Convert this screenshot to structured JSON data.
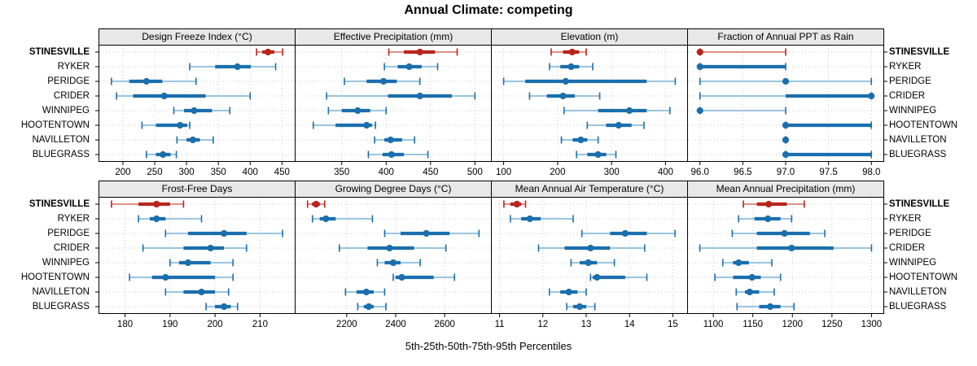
{
  "title": "Annual Climate: competing",
  "xlabel": "5th-25th-50th-75th-95th Percentiles",
  "categories": [
    "STINESVILLE",
    "RYKER",
    "PERIDGE",
    "CRIDER",
    "WINNIPEG",
    "HOOTENTOWN",
    "NAVILLETON",
    "BLUEGRASS"
  ],
  "bold_category": "STINESVILLE",
  "colors": {
    "highlight": "#b8251c",
    "highlight_light": "#d97f77",
    "normal": "#1b6fad",
    "normal_light": "#8cbbda",
    "strip_bg": "#e8e8e8",
    "grid": "#c9c9c9",
    "border": "#000000",
    "background": "#ffffff"
  },
  "chart_data": {
    "type": "dotplot-percentiles",
    "percentiles": [
      "5th",
      "25th",
      "50th",
      "75th",
      "95th"
    ],
    "rows": 2,
    "cols": 4,
    "panels": [
      {
        "title": "Design Freeze Index (°C)",
        "row": 0,
        "col": 0,
        "xlim": [
          163,
          470
        ],
        "ticks": [
          200,
          250,
          300,
          350,
          400,
          450
        ],
        "tick_labels": [
          "200",
          "250",
          "300",
          "350",
          "400",
          "450"
        ],
        "series": [
          {
            "name": "STINESVILLE",
            "values": [
              410,
              419,
              428,
              438,
              451
            ]
          },
          {
            "name": "RYKER",
            "values": [
              305,
              345,
              380,
              401,
              440
            ]
          },
          {
            "name": "PERIDGE",
            "values": [
              182,
              210,
              237,
              262,
              315
            ]
          },
          {
            "name": "CRIDER",
            "values": [
              190,
              216,
              265,
              330,
              400
            ]
          },
          {
            "name": "WINNIPEG",
            "values": [
              280,
              296,
              312,
              340,
              368
            ]
          },
          {
            "name": "HOOTENTOWN",
            "values": [
              230,
              252,
              290,
              301,
              305
            ]
          },
          {
            "name": "NAVILLETON",
            "values": [
              285,
              300,
              310,
              321,
              342
            ]
          },
          {
            "name": "BLUEGRASS",
            "values": [
              237,
              252,
              263,
              275,
              284
            ]
          }
        ]
      },
      {
        "title": "Effective Precipitation (mm)",
        "row": 0,
        "col": 1,
        "xlim": [
          298,
          518
        ],
        "ticks": [
          350,
          400,
          450,
          500
        ],
        "tick_labels": [
          "350",
          "400",
          "450",
          "500"
        ],
        "series": [
          {
            "name": "STINESVILLE",
            "values": [
              403,
              420,
              438,
              455,
              480
            ]
          },
          {
            "name": "RYKER",
            "values": [
              398,
              413,
              426,
              440,
              458
            ]
          },
          {
            "name": "PERIDGE",
            "values": [
              353,
              378,
              397,
              412,
              438
            ]
          },
          {
            "name": "CRIDER",
            "values": [
              333,
              402,
              438,
              474,
              500
            ]
          },
          {
            "name": "WINNIPEG",
            "values": [
              335,
              350,
              368,
              382,
              400
            ]
          },
          {
            "name": "HOOTENTOWN",
            "values": [
              318,
              343,
              378,
              384,
              388
            ]
          },
          {
            "name": "NAVILLETON",
            "values": [
              387,
              398,
              405,
              418,
              432
            ]
          },
          {
            "name": "BLUEGRASS",
            "values": [
              380,
              396,
              406,
              420,
              447
            ]
          }
        ]
      },
      {
        "title": "Elevation (m)",
        "row": 0,
        "col": 2,
        "xlim": [
          78,
          440
        ],
        "ticks": [
          100,
          200,
          300,
          400
        ],
        "tick_labels": [
          "100",
          "200",
          "300",
          "400"
        ],
        "series": [
          {
            "name": "STINESVILLE",
            "values": [
              188,
              210,
              227,
              240,
              253
            ]
          },
          {
            "name": "RYKER",
            "values": [
              185,
              205,
              225,
              240,
              265
            ]
          },
          {
            "name": "PERIDGE",
            "values": [
              100,
              140,
              215,
              365,
              418
            ]
          },
          {
            "name": "CRIDER",
            "values": [
              148,
              180,
              210,
              232,
              278
            ]
          },
          {
            "name": "WINNIPEG",
            "values": [
              212,
              275,
              333,
              365,
              408
            ]
          },
          {
            "name": "HOOTENTOWN",
            "values": [
              255,
              290,
              313,
              337,
              360
            ]
          },
          {
            "name": "NAVILLETON",
            "values": [
              207,
              228,
              243,
              255,
              275
            ]
          },
          {
            "name": "BLUEGRASS",
            "values": [
              235,
              255,
              275,
              290,
              308
            ]
          }
        ]
      },
      {
        "title": "Fraction of Annual PPT as Rain",
        "row": 0,
        "col": 3,
        "xlim": [
          95.86,
          98.14
        ],
        "ticks": [
          96.0,
          96.5,
          97.0,
          97.5,
          98.0
        ],
        "tick_labels": [
          "96.0",
          "96.5",
          "97.0",
          "97.5",
          "98.0"
        ],
        "series": [
          {
            "name": "STINESVILLE",
            "values": [
              96,
              96,
              96,
              96,
              97
            ]
          },
          {
            "name": "RYKER",
            "values": [
              96,
              96,
              96,
              97,
              97
            ]
          },
          {
            "name": "PERIDGE",
            "values": [
              96,
              97,
              97,
              97,
              98
            ]
          },
          {
            "name": "CRIDER",
            "values": [
              96,
              97,
              98,
              98,
              98
            ]
          },
          {
            "name": "WINNIPEG",
            "values": [
              96,
              96,
              96,
              96,
              97
            ]
          },
          {
            "name": "HOOTENTOWN",
            "values": [
              97,
              97,
              97,
              98,
              98
            ]
          },
          {
            "name": "NAVILLETON",
            "values": [
              97,
              97,
              97,
              97,
              97
            ]
          },
          {
            "name": "BLUEGRASS",
            "values": [
              97,
              97,
              97,
              98,
              98
            ]
          }
        ]
      },
      {
        "title": "Frost-Free Days",
        "row": 1,
        "col": 0,
        "xlim": [
          174.3,
          217.7
        ],
        "ticks": [
          180,
          190,
          200,
          210
        ],
        "tick_labels": [
          "180",
          "190",
          "200",
          "210"
        ],
        "series": [
          {
            "name": "STINESVILLE",
            "values": [
              177,
              183,
              187,
              190,
              193
            ]
          },
          {
            "name": "RYKER",
            "values": [
              183,
              185.5,
              187,
              189,
              197
            ]
          },
          {
            "name": "PERIDGE",
            "values": [
              189,
              194,
              202,
              207,
              215
            ]
          },
          {
            "name": "CRIDER",
            "values": [
              184,
              193,
              199,
              202,
              207
            ]
          },
          {
            "name": "WINNIPEG",
            "values": [
              190,
              192,
              194,
              199,
              204
            ]
          },
          {
            "name": "HOOTENTOWN",
            "values": [
              181,
              186,
              189,
              200,
              204
            ]
          },
          {
            "name": "NAVILLETON",
            "values": [
              189,
              193,
              197,
              200,
              203
            ]
          },
          {
            "name": "BLUEGRASS",
            "values": [
              198,
              200,
              202,
              203.5,
              205
            ]
          }
        ]
      },
      {
        "title": "Growing Degree Days (°C)",
        "row": 1,
        "col": 1,
        "xlim": [
          1991,
          2789
        ],
        "ticks": [
          2200,
          2400,
          2600
        ],
        "tick_labels": [
          "2200",
          "2400",
          "2600"
        ],
        "series": [
          {
            "name": "STINESVILLE",
            "values": [
              2040,
              2058,
              2075,
              2090,
              2110
            ]
          },
          {
            "name": "RYKER",
            "values": [
              2060,
              2090,
              2115,
              2155,
              2305
            ]
          },
          {
            "name": "PERIDGE",
            "values": [
              2355,
              2420,
              2525,
              2620,
              2740
            ]
          },
          {
            "name": "CRIDER",
            "values": [
              2170,
              2285,
              2375,
              2475,
              2605
            ]
          },
          {
            "name": "WINNIPEG",
            "values": [
              2325,
              2355,
              2390,
              2420,
              2500
            ]
          },
          {
            "name": "HOOTENTOWN",
            "values": [
              2390,
              2400,
              2425,
              2555,
              2640
            ]
          },
          {
            "name": "NAVILLETON",
            "values": [
              2195,
              2240,
              2280,
              2310,
              2355
            ]
          },
          {
            "name": "BLUEGRASS",
            "values": [
              2245,
              2270,
              2290,
              2310,
              2360
            ]
          }
        ]
      },
      {
        "title": "Mean Annual Air Temperature (°C)",
        "row": 1,
        "col": 2,
        "xlim": [
          10.82,
          15.33
        ],
        "ticks": [
          11,
          12,
          13,
          14,
          15
        ],
        "tick_labels": [
          "11",
          "12",
          "13",
          "14",
          "15"
        ],
        "series": [
          {
            "name": "STINESVILLE",
            "values": [
              11.1,
              11.25,
              11.4,
              11.5,
              11.6
            ]
          },
          {
            "name": "RYKER",
            "values": [
              11.25,
              11.5,
              11.7,
              11.95,
              12.7
            ]
          },
          {
            "name": "PERIDGE",
            "values": [
              12.9,
              13.55,
              13.9,
              14.4,
              15.05
            ]
          },
          {
            "name": "CRIDER",
            "values": [
              11.9,
              12.5,
              13.1,
              13.55,
              14.35
            ]
          },
          {
            "name": "WINNIPEG",
            "values": [
              12.65,
              12.85,
              13.05,
              13.25,
              13.65
            ]
          },
          {
            "name": "HOOTENTOWN",
            "values": [
              13.1,
              13.15,
              13.25,
              13.9,
              14.4
            ]
          },
          {
            "name": "NAVILLETON",
            "values": [
              12.15,
              12.4,
              12.6,
              12.8,
              13.0
            ]
          },
          {
            "name": "BLUEGRASS",
            "values": [
              12.55,
              12.7,
              12.85,
              13.0,
              13.2
            ]
          }
        ]
      },
      {
        "title": "Mean Annual Precipitation (mm)",
        "row": 1,
        "col": 3,
        "xlim": [
          1068,
          1315
        ],
        "ticks": [
          1100,
          1150,
          1200,
          1250,
          1300
        ],
        "tick_labels": [
          "1100",
          "1150",
          "1200",
          "1250",
          "1300"
        ],
        "series": [
          {
            "name": "STINESVILLE",
            "values": [
              1138,
              1155,
              1170,
              1193,
              1215
            ]
          },
          {
            "name": "RYKER",
            "values": [
              1132,
              1152,
              1169,
              1185,
              1199
            ]
          },
          {
            "name": "PERIDGE",
            "values": [
              1124,
              1155,
              1190,
              1222,
              1241
            ]
          },
          {
            "name": "CRIDER",
            "values": [
              1083,
              1155,
              1199,
              1252,
              1300
            ]
          },
          {
            "name": "WINNIPEG",
            "values": [
              1112,
              1125,
              1132,
              1145,
              1174
            ]
          },
          {
            "name": "HOOTENTOWN",
            "values": [
              1102,
              1125,
              1149,
              1160,
              1185
            ]
          },
          {
            "name": "NAVILLETON",
            "values": [
              1129,
              1140,
              1146,
              1158,
              1177
            ]
          },
          {
            "name": "BLUEGRASS",
            "values": [
              1130,
              1158,
              1172,
              1185,
              1202
            ]
          }
        ]
      }
    ]
  }
}
